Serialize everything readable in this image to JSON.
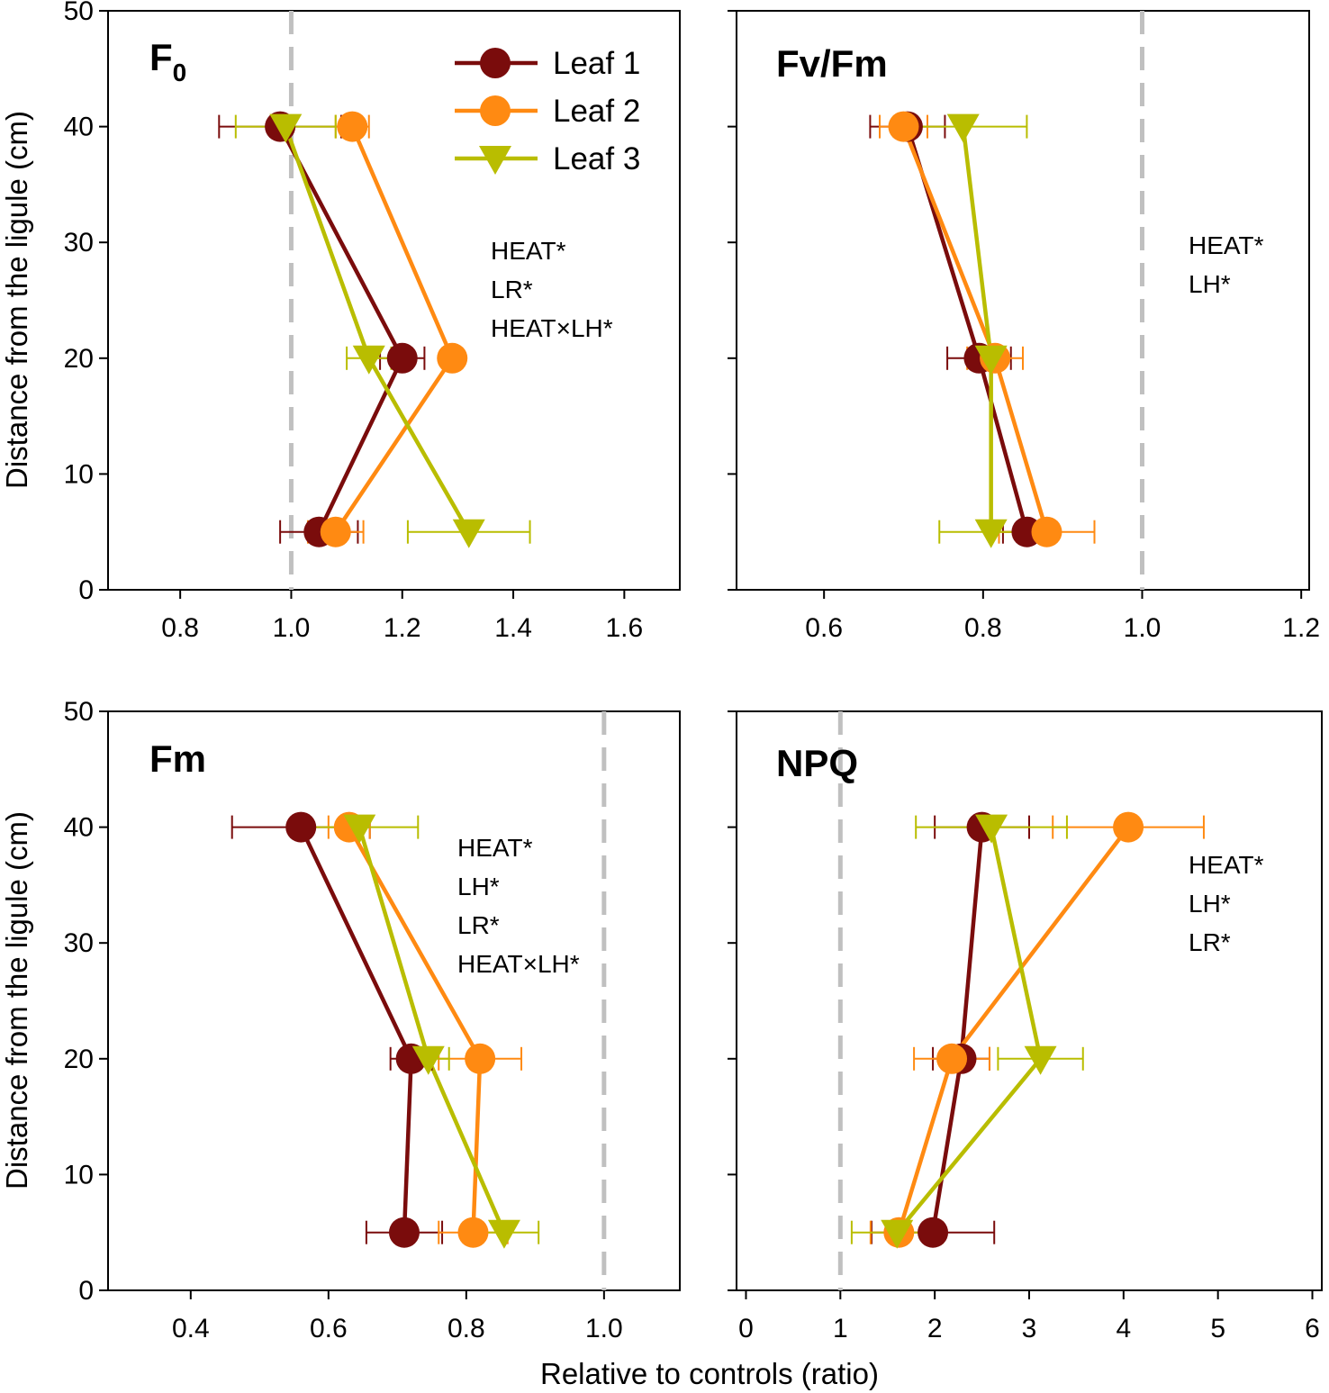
{
  "chart_data": {
    "type": "scatter",
    "xlabel": "Relative to controls (ratio)",
    "ylabel": "Distance from the ligule (cm)",
    "ylim": [
      0,
      50
    ],
    "yticks": [
      "0",
      "10",
      "20",
      "30",
      "40",
      "50"
    ],
    "colors": {
      "Leaf 1": "#7a0c0c",
      "Leaf 2": "#ff8a12",
      "Leaf 3": "#b9bd00"
    },
    "legend": [
      {
        "name": "Leaf 1",
        "marker": "circle"
      },
      {
        "name": "Leaf 2",
        "marker": "circle"
      },
      {
        "name": "Leaf 3",
        "marker": "triangle-down"
      }
    ],
    "panels": [
      {
        "id": "F0",
        "title": "F",
        "title_sub": "0",
        "xlim": [
          0.67,
          1.7
        ],
        "xticks": [
          0.8,
          1.0,
          1.2,
          1.4,
          1.6
        ],
        "xtick_labels": [
          "0.8",
          "1.0",
          "1.2",
          "1.4",
          "1.6"
        ],
        "reference_x": 1.0,
        "significance": [
          "HEAT*",
          "LR*",
          "HEAT×LH*"
        ],
        "show_legend": true,
        "series": [
          {
            "name": "Leaf 1",
            "points": [
              {
                "x": 0.98,
                "y": 40,
                "err": 0.11
              },
              {
                "x": 1.2,
                "y": 20,
                "err": 0.04
              },
              {
                "x": 1.05,
                "y": 5,
                "err": 0.07
              }
            ]
          },
          {
            "name": "Leaf 2",
            "points": [
              {
                "x": 1.11,
                "y": 40,
                "err": 0.03
              },
              {
                "x": 1.29,
                "y": 20,
                "err": 0.0
              },
              {
                "x": 1.08,
                "y": 5,
                "err": 0.05
              }
            ]
          },
          {
            "name": "Leaf 3",
            "points": [
              {
                "x": 0.99,
                "y": 40,
                "err": 0.09
              },
              {
                "x": 1.14,
                "y": 20,
                "err": 0.04
              },
              {
                "x": 1.32,
                "y": 5,
                "err": 0.11
              }
            ]
          }
        ]
      },
      {
        "id": "FvFm",
        "title": "Fv/Fm",
        "title_sub": "",
        "xlim": [
          0.49,
          1.21
        ],
        "xticks": [
          0.6,
          0.8,
          1.0,
          1.2
        ],
        "xtick_labels": [
          "0.6",
          "0.8",
          "1.0",
          "1.2"
        ],
        "reference_x": 1.0,
        "significance": [
          "HEAT*",
          "LH*"
        ],
        "show_legend": false,
        "series": [
          {
            "name": "Leaf 1",
            "points": [
              {
                "x": 0.705,
                "y": 40,
                "err": 0.047
              },
              {
                "x": 0.795,
                "y": 20,
                "err": 0.04
              },
              {
                "x": 0.855,
                "y": 5,
                "err": 0.03
              }
            ]
          },
          {
            "name": "Leaf 2",
            "points": [
              {
                "x": 0.7,
                "y": 40,
                "err": 0.03
              },
              {
                "x": 0.815,
                "y": 20,
                "err": 0.035
              },
              {
                "x": 0.88,
                "y": 5,
                "err": 0.06
              }
            ]
          },
          {
            "name": "Leaf 3",
            "points": [
              {
                "x": 0.775,
                "y": 40,
                "err": 0.08
              },
              {
                "x": 0.81,
                "y": 20,
                "err": 0.0
              },
              {
                "x": 0.81,
                "y": 5,
                "err": 0.065
              }
            ]
          }
        ]
      },
      {
        "id": "Fm",
        "title": "Fm",
        "title_sub": "",
        "xlim": [
          0.28,
          1.11
        ],
        "xticks": [
          0.4,
          0.6,
          0.8,
          1.0
        ],
        "xtick_labels": [
          "0.4",
          "0.6",
          "0.8",
          "1.0"
        ],
        "reference_x": 1.0,
        "significance": [
          "HEAT*",
          "LH*",
          "LR*",
          "HEAT×LH*"
        ],
        "show_legend": false,
        "series": [
          {
            "name": "Leaf 1",
            "points": [
              {
                "x": 0.56,
                "y": 40,
                "err": 0.1
              },
              {
                "x": 0.72,
                "y": 20,
                "err": 0.03
              },
              {
                "x": 0.71,
                "y": 5,
                "err": 0.055
              }
            ]
          },
          {
            "name": "Leaf 2",
            "points": [
              {
                "x": 0.63,
                "y": 40,
                "err": 0.03
              },
              {
                "x": 0.82,
                "y": 20,
                "err": 0.06
              },
              {
                "x": 0.81,
                "y": 5,
                "err": 0.05
              }
            ]
          },
          {
            "name": "Leaf 3",
            "points": [
              {
                "x": 0.645,
                "y": 40,
                "err": 0.085
              },
              {
                "x": 0.745,
                "y": 20,
                "err": 0.03
              },
              {
                "x": 0.855,
                "y": 5,
                "err": 0.05
              }
            ]
          }
        ]
      },
      {
        "id": "NPQ",
        "title": "NPQ",
        "title_sub": "",
        "xlim": [
          -0.1,
          6.1
        ],
        "xticks": [
          0,
          1,
          2,
          3,
          4,
          5,
          6
        ],
        "xtick_labels": [
          "0",
          "1",
          "2",
          "3",
          "4",
          "5",
          "6"
        ],
        "reference_x": 1.0,
        "significance": [
          "HEAT*",
          "LH*",
          "LR*"
        ],
        "show_legend": false,
        "series": [
          {
            "name": "Leaf 1",
            "points": [
              {
                "x": 2.5,
                "y": 40,
                "err": 0.5
              },
              {
                "x": 2.28,
                "y": 20,
                "err": 0.3
              },
              {
                "x": 1.98,
                "y": 5,
                "err": 0.65
              }
            ]
          },
          {
            "name": "Leaf 2",
            "points": [
              {
                "x": 4.05,
                "y": 40,
                "err": 0.8
              },
              {
                "x": 2.18,
                "y": 20,
                "err": 0.4
              },
              {
                "x": 1.62,
                "y": 5,
                "err": 0.3
              }
            ]
          },
          {
            "name": "Leaf 3",
            "points": [
              {
                "x": 2.6,
                "y": 40,
                "err": 0.8
              },
              {
                "x": 3.12,
                "y": 20,
                "err": 0.45
              },
              {
                "x": 1.6,
                "y": 5,
                "err": 0.48
              }
            ]
          }
        ]
      }
    ]
  }
}
